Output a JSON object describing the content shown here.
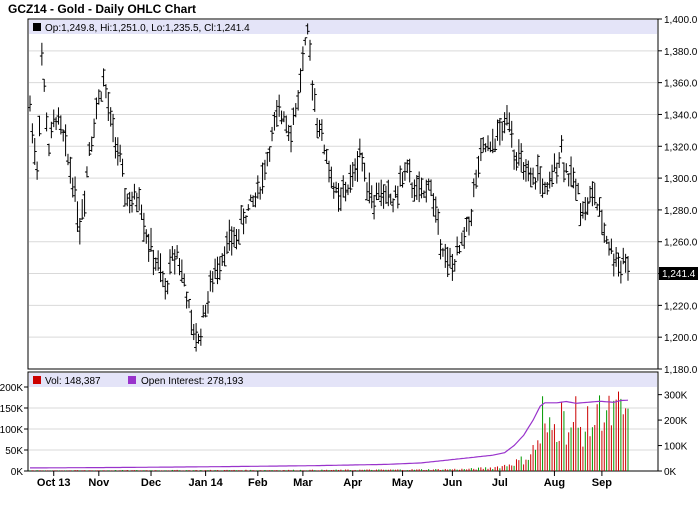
{
  "chart_data": [
    {
      "type": "ohlc",
      "title": "GCZ14 - Gold - Daily OHLC Chart",
      "legend": {
        "label_open": "Op:",
        "open": "1,249.8",
        "label_high": "Hi:",
        "high": "1,251.0",
        "label_low": "Lo:",
        "low": "1,235.5",
        "label_close": "Cl:",
        "close": "1,241.4"
      },
      "last_price_label": "1,241.4",
      "ylim": [
        1180,
        1400
      ],
      "y_ticks": [
        "1,400.0",
        "1,380.0",
        "1,360.0",
        "1,340.0",
        "1,320.0",
        "1,300.0",
        "1,280.0",
        "1,260.0",
        "1,240.0",
        "1,220.0",
        "1,200.0",
        "1,180.0"
      ],
      "y_tick_values": [
        1400,
        1380,
        1360,
        1340,
        1320,
        1300,
        1280,
        1260,
        1240,
        1220,
        1200,
        1180
      ],
      "grid": true,
      "x_labels": [
        "Oct 13",
        "Nov",
        "Dec",
        "Jan 14",
        "Feb",
        "Mar",
        "Apr",
        "May",
        "Jun",
        "Jul",
        "Aug",
        "Sep"
      ],
      "x_label_day": [
        10,
        29,
        51,
        74,
        96,
        115,
        136,
        157,
        178,
        198,
        221,
        241
      ],
      "bar_count": 253,
      "anchors": [
        [
          0,
          1345
        ],
        [
          3,
          1305
        ],
        [
          5,
          1375
        ],
        [
          8,
          1318
        ],
        [
          11,
          1340
        ],
        [
          14,
          1325
        ],
        [
          18,
          1300
        ],
        [
          21,
          1270
        ],
        [
          23,
          1290
        ],
        [
          25,
          1320
        ],
        [
          29,
          1350
        ],
        [
          31,
          1362
        ],
        [
          34,
          1335
        ],
        [
          37,
          1318
        ],
        [
          40,
          1290
        ],
        [
          43,
          1283
        ],
        [
          46,
          1290
        ],
        [
          49,
          1265
        ],
        [
          52,
          1250
        ],
        [
          55,
          1240
        ],
        [
          57,
          1228
        ],
        [
          59,
          1245
        ],
        [
          62,
          1255
        ],
        [
          64,
          1240
        ],
        [
          66,
          1228
        ],
        [
          68,
          1205
        ],
        [
          71,
          1198
        ],
        [
          73,
          1213
        ],
        [
          75,
          1225
        ],
        [
          78,
          1240
        ],
        [
          81,
          1253
        ],
        [
          84,
          1260
        ],
        [
          87,
          1262
        ],
        [
          90,
          1275
        ],
        [
          94,
          1285
        ],
        [
          98,
          1300
        ],
        [
          101,
          1320
        ],
        [
          104,
          1337
        ],
        [
          107,
          1342
        ],
        [
          110,
          1330
        ],
        [
          113,
          1350
        ],
        [
          115,
          1375
        ],
        [
          117,
          1388
        ],
        [
          119,
          1362
        ],
        [
          121,
          1338
        ],
        [
          124,
          1320
        ],
        [
          127,
          1300
        ],
        [
          130,
          1285
        ],
        [
          133,
          1292
        ],
        [
          136,
          1300
        ],
        [
          139,
          1318
        ],
        [
          141,
          1303
        ],
        [
          143,
          1295
        ],
        [
          145,
          1285
        ],
        [
          147,
          1292
        ],
        [
          150,
          1288
        ],
        [
          153,
          1285
        ],
        [
          156,
          1296
        ],
        [
          158,
          1305
        ],
        [
          161,
          1296
        ],
        [
          163,
          1292
        ],
        [
          166,
          1288
        ],
        [
          168,
          1300
        ],
        [
          170,
          1285
        ],
        [
          172,
          1270
        ],
        [
          174,
          1258
        ],
        [
          176,
          1245
        ],
        [
          178,
          1245
        ],
        [
          180,
          1250
        ],
        [
          182,
          1258
        ],
        [
          184,
          1268
        ],
        [
          186,
          1280
        ],
        [
          188,
          1300
        ],
        [
          190,
          1312
        ],
        [
          192,
          1320
        ],
        [
          194,
          1315
        ],
        [
          196,
          1325
        ],
        [
          198,
          1328
        ],
        [
          200,
          1332
        ],
        [
          202,
          1342
        ],
        [
          204,
          1318
        ],
        [
          206,
          1312
        ],
        [
          208,
          1305
        ],
        [
          210,
          1298
        ],
        [
          212,
          1295
        ],
        [
          214,
          1305
        ],
        [
          216,
          1295
        ],
        [
          218,
          1288
        ],
        [
          220,
          1300
        ],
        [
          222,
          1312
        ],
        [
          224,
          1318
        ],
        [
          226,
          1305
        ],
        [
          228,
          1300
        ],
        [
          230,
          1295
        ],
        [
          232,
          1285
        ],
        [
          234,
          1280
        ],
        [
          236,
          1287
        ],
        [
          238,
          1290
        ],
        [
          240,
          1275
        ],
        [
          242,
          1268
        ],
        [
          244,
          1258
        ],
        [
          246,
          1250
        ],
        [
          247,
          1250
        ],
        [
          249,
          1246
        ],
        [
          250,
          1250
        ],
        [
          252,
          1241
        ]
      ]
    },
    {
      "type": "bar+line",
      "legend": [
        {
          "label": "Vol: 148,387",
          "color": "#cc0000"
        },
        {
          "label": "Open Interest: 278,193",
          "color": "#9933cc"
        }
      ],
      "left_axis_ticks": [
        "200K",
        "150K",
        "100K",
        "50K",
        "0K"
      ],
      "left_axis_values": [
        200000,
        150000,
        100000,
        50000,
        0
      ],
      "right_axis_ticks": [
        "300K",
        "200K",
        "100K",
        "0K"
      ],
      "right_axis_values": [
        300000,
        200000,
        100000,
        0
      ],
      "volume_ylim": [
        0,
        200000
      ],
      "oi_ylim": [
        0,
        330000
      ],
      "oi_anchors": [
        [
          0,
          12000
        ],
        [
          40,
          14000
        ],
        [
          80,
          17000
        ],
        [
          120,
          21000
        ],
        [
          150,
          26000
        ],
        [
          165,
          32000
        ],
        [
          175,
          42000
        ],
        [
          185,
          52000
        ],
        [
          195,
          62000
        ],
        [
          200,
          72000
        ],
        [
          204,
          100000
        ],
        [
          208,
          140000
        ],
        [
          212,
          200000
        ],
        [
          215,
          255000
        ],
        [
          217,
          268000
        ],
        [
          222,
          268000
        ],
        [
          226,
          273000
        ],
        [
          230,
          266000
        ],
        [
          235,
          270000
        ],
        [
          240,
          274000
        ],
        [
          246,
          270000
        ],
        [
          249,
          277000
        ],
        [
          252,
          278193
        ]
      ],
      "volume_anchors": [
        [
          0,
          1500
        ],
        [
          120,
          2500
        ],
        [
          160,
          3500
        ],
        [
          185,
          5000
        ],
        [
          195,
          9000
        ],
        [
          200,
          14000
        ],
        [
          204,
          22000
        ],
        [
          208,
          30000
        ],
        [
          211,
          45000
        ],
        [
          214,
          75000
        ],
        [
          217,
          100000
        ],
        [
          220,
          110000
        ],
        [
          223,
          125000
        ],
        [
          226,
          120000
        ],
        [
          230,
          105000
        ],
        [
          234,
          115000
        ],
        [
          238,
          130000
        ],
        [
          242,
          135000
        ],
        [
          246,
          150000
        ],
        [
          249,
          160000
        ],
        [
          252,
          148387
        ]
      ],
      "volume_spikes": [
        [
          216,
          178000
        ],
        [
          224,
          165000
        ],
        [
          230,
          178000
        ],
        [
          240,
          180000
        ],
        [
          247,
          170000
        ]
      ]
    }
  ]
}
